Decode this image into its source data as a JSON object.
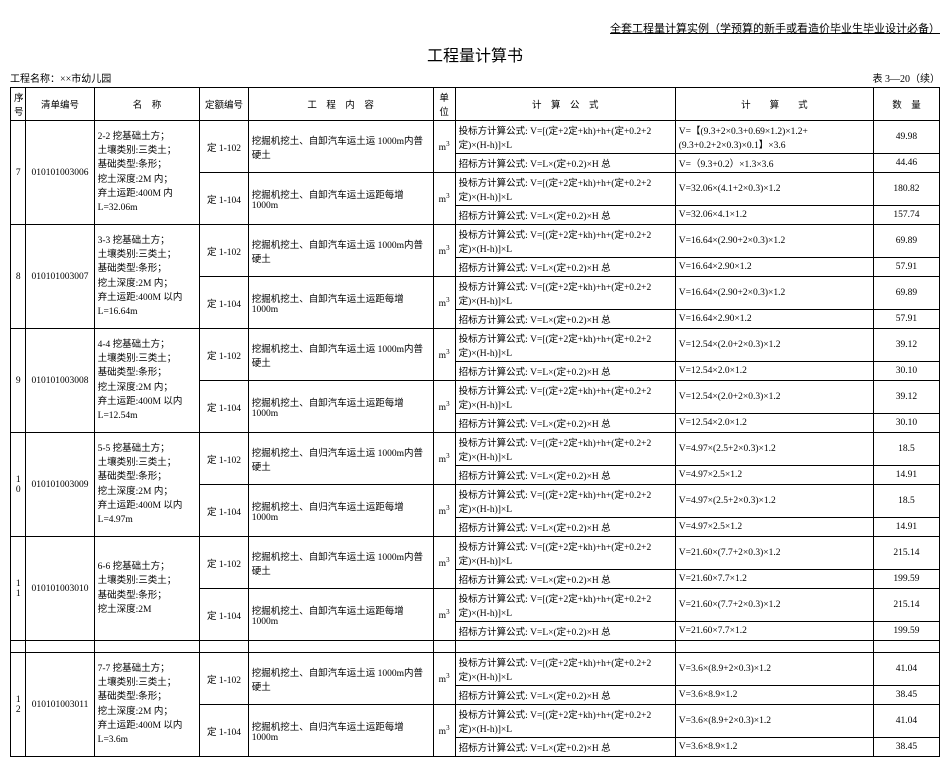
{
  "header_ref": "全套工程量计算实例（学预算的新手或看造价毕业生毕业设计必备）",
  "title": "工程量计算书",
  "project_label": "工程名称：××市幼儿园",
  "table_no": "表 3—20（续）",
  "columns": {
    "seq": "序号",
    "list_code": "清单编号",
    "name": "名　称",
    "quota_code": "定额编号",
    "content": "工　程　内　容",
    "unit": "单位",
    "formula": "计　算　公　式",
    "calc": "计　　算　　式",
    "qty": "数　量"
  },
  "unit_m3": "m³",
  "groups": [
    {
      "seq": "7",
      "list_code": "010101003006",
      "name": "2-2 挖基础土方；\n土壤类别:三类土；\n基础类型:条形；\n挖土深度:2M 内；\n弃土运距:400M 内L=32.06m",
      "sub": [
        {
          "quota": "定 1-102",
          "content": "挖掘机挖土、自卸汽车运土运 1000m内普硬土",
          "rows": [
            {
              "formula": "投标方计算公式: V=[(定+2定+kh)+h+(定+0.2+2定)×(H-h)]×L",
              "calc": "V=【(9.3+2×0.3+0.69×1.2)×1.2+(9.3+0.2+2×0.3)×0.1】×3.6",
              "qty": "49.98"
            },
            {
              "formula": "招标方计算公式: V=L×(定+0.2)×H 总",
              "calc": "V=（9.3+0.2）×1.3×3.6",
              "qty": "44.46"
            }
          ]
        },
        {
          "quota": "定 1-104",
          "content": "挖掘机挖土、自卸汽车运土运距每增 1000m",
          "rows": [
            {
              "formula": "投标方计算公式: V=[(定+2定+kh)+h+(定+0.2+2定)×(H-h)]×L",
              "calc": "V=32.06×(4.1+2×0.3)×1.2",
              "qty": "180.82"
            },
            {
              "formula": "招标方计算公式: V=L×(定+0.2)×H 总",
              "calc": "V=32.06×4.1×1.2",
              "qty": "157.74"
            }
          ]
        }
      ]
    },
    {
      "seq": "8",
      "list_code": "010101003007",
      "name": "3-3 挖基础土方；\n土壤类别:三类土；\n基础类型:条形；\n挖土深度:2M 内；\n弃土运距:400M 以内 L=16.64m",
      "sub": [
        {
          "quota": "定 1-102",
          "content": "挖掘机挖土、自卸汽车运土运 1000m内普硬土",
          "rows": [
            {
              "formula": "投标方计算公式: V=[(定+2定+kh)+h+(定+0.2+2定)×(H-h)]×L",
              "calc": "V=16.64×(2.90+2×0.3)×1.2",
              "qty": "69.89"
            },
            {
              "formula": "招标方计算公式: V=L×(定+0.2)×H 总",
              "calc": "V=16.64×2.90×1.2",
              "qty": "57.91"
            }
          ]
        },
        {
          "quota": "定 1-104",
          "content": "挖掘机挖土、自卸汽车运土运距每增 1000m",
          "rows": [
            {
              "formula": "投标方计算公式: V=[(定+2定+kh)+h+(定+0.2+2定)×(H-h)]×L",
              "calc": "V=16.64×(2.90+2×0.3)×1.2",
              "qty": "69.89"
            },
            {
              "formula": "招标方计算公式: V=L×(定+0.2)×H 总",
              "calc": "V=16.64×2.90×1.2",
              "qty": "57.91"
            }
          ]
        }
      ]
    },
    {
      "seq": "9",
      "list_code": "010101003008",
      "name": "4-4 挖基础土方；\n土壤类别:三类土；\n基础类型:条形；\n挖土深度:2M 内；\n弃土运距:400M 以内 L=12.54m",
      "sub": [
        {
          "quota": "定 1-102",
          "content": "挖掘机挖土、自卸汽车运土运 1000m内普硬土",
          "rows": [
            {
              "formula": "投标方计算公式: V=[(定+2定+kh)+h+(定+0.2+2定)×(H-h)]×L",
              "calc": "V=12.54×(2.0+2×0.3)×1.2",
              "qty": "39.12"
            },
            {
              "formula": "招标方计算公式: V=L×(定+0.2)×H 总",
              "calc": "V=12.54×2.0×1.2",
              "qty": "30.10"
            }
          ]
        },
        {
          "quota": "定 1-104",
          "content": "挖掘机挖土、自卸汽车运土运距每增 1000m",
          "rows": [
            {
              "formula": "投标方计算公式: V=[(定+2定+kh)+h+(定+0.2+2定)×(H-h)]×L",
              "calc": "V=12.54×(2.0+2×0.3)×1.2",
              "qty": "39.12"
            },
            {
              "formula": "招标方计算公式: V=L×(定+0.2)×H 总",
              "calc": "V=12.54×2.0×1.2",
              "qty": "30.10"
            }
          ]
        }
      ]
    },
    {
      "seq": "10",
      "list_code": "010101003009",
      "name": "5-5 挖基础土方；\n土壤类别:三类土；\n基础类型:条形；\n挖土深度:2M 内；\n弃土运距:400M 以内 L=4.97m",
      "sub": [
        {
          "quota": "定 1-102",
          "content": "挖掘机挖土、自归汽车运土运 1000m内普硬土",
          "rows": [
            {
              "formula": "投标方计算公式: V=[(定+2定+kh)+h+(定+0.2+2定)×(H-h)]×L",
              "calc": "V=4.97×(2.5+2×0.3)×1.2",
              "qty": "18.5"
            },
            {
              "formula": "招标方计算公式: V=L×(定+0.2)×H 总",
              "calc": "V=4.97×2.5×1.2",
              "qty": "14.91"
            }
          ]
        },
        {
          "quota": "定 1-104",
          "content": "挖掘机挖土、自归汽车运土运距每增 1000m",
          "rows": [
            {
              "formula": "投标方计算公式: V=[(定+2定+kh)+h+(定+0.2+2定)×(H-h)]×L",
              "calc": "V=4.97×(2.5+2×0.3)×1.2",
              "qty": "18.5"
            },
            {
              "formula": "招标方计算公式: V=L×(定+0.2)×H 总",
              "calc": "V=4.97×2.5×1.2",
              "qty": "14.91"
            }
          ]
        }
      ]
    },
    {
      "seq": "11",
      "list_code": "010101003010",
      "name": "6-6 挖基础土方；\n土壤类别:三类土；\n基础类型:条形；\n挖土深度:2M",
      "sub": [
        {
          "quota": "定 1-102",
          "content": "挖掘机挖土、自卸汽车运土运 1000m内普硬土",
          "rows": [
            {
              "formula": "投标方计算公式: V=[(定+2定+kh)+h+(定+0.2+2定)×(H-h)]×L",
              "calc": "V=21.60×(7.7+2×0.3)×1.2",
              "qty": "215.14"
            },
            {
              "formula": "招标方计算公式: V=L×(定+0.2)×H 总",
              "calc": "V=21.60×7.7×1.2",
              "qty": "199.59"
            }
          ]
        },
        {
          "quota": "定 1-104",
          "content": "挖掘机挖土、自卸汽车运土运距每增 1000m",
          "rows": [
            {
              "formula": "投标方计算公式: V=[(定+2定+kh)+h+(定+0.2+2定)×(H-h)]×L",
              "calc": "V=21.60×(7.7+2×0.3)×1.2",
              "qty": "215.14"
            },
            {
              "formula": "招标方计算公式: V=L×(定+0.2)×H 总",
              "calc": "V=21.60×7.7×1.2",
              "qty": "199.59"
            }
          ]
        }
      ]
    },
    {
      "seq": "12",
      "list_code": "010101003011",
      "name": "7-7 挖基础土方；\n土壤类别:三类土；\n基础类型:条形；\n挖土深度:2M 内；\n弃土运距:400M 以内 L=3.6m",
      "sub": [
        {
          "quota": "定 1-102",
          "content": "挖掘机挖土、自卸汽车运土运 1000m内普硬土",
          "rows": [
            {
              "formula": "投标方计算公式: V=[(定+2定+kh)+h+(定+0.2+2定)×(H-h)]×L",
              "calc": "V=3.6×(8.9+2×0.3)×1.2",
              "qty": "41.04"
            },
            {
              "formula": "招标方计算公式: V=L×(定+0.2)×H 总",
              "calc": "V=3.6×8.9×1.2",
              "qty": "38.45"
            }
          ]
        },
        {
          "quota": "定 1-104",
          "content": "挖掘机挖土、自归汽车运土运距每增 1000m",
          "rows": [
            {
              "formula": "投标方计算公式: V=[(定+2定+kh)+h+(定+0.2+2定)×(H-h)]×L",
              "calc": "V=3.6×(8.9+2×0.3)×1.2",
              "qty": "41.04"
            },
            {
              "formula": "招标方计算公式: V=L×(定+0.2)×H 总",
              "calc": "V=3.6×8.9×1.2",
              "qty": "38.45"
            }
          ]
        }
      ]
    }
  ]
}
